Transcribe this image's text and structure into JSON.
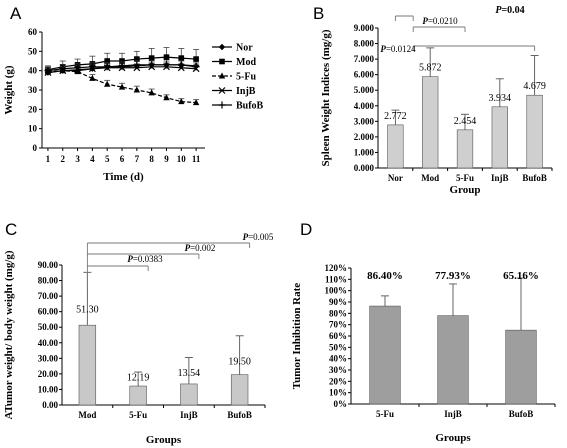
{
  "chart_data": [
    {
      "panel": "A",
      "type": "line",
      "xlabel": "Time (d)",
      "ylabel": "Weight (g)",
      "x": [
        1,
        2,
        3,
        4,
        5,
        6,
        7,
        8,
        9,
        10,
        11
      ],
      "xlim": [
        0.6,
        11.6
      ],
      "ylim": [
        0,
        60
      ],
      "yticks": [
        0,
        10,
        20,
        30,
        40,
        50,
        60
      ],
      "legend_position": "right",
      "series": [
        {
          "name": "Nor",
          "marker": "diamond",
          "dashed": false,
          "values": [
            39,
            40,
            40,
            41,
            42,
            42,
            42.5,
            43,
            43,
            43,
            42.5
          ],
          "errors": [
            2,
            2,
            2,
            2,
            2,
            3,
            3,
            3,
            3,
            3,
            3
          ]
        },
        {
          "name": "Mod",
          "marker": "square",
          "dashed": false,
          "values": [
            40.5,
            42,
            43,
            43.5,
            45,
            45,
            46,
            46.5,
            47,
            46.5,
            46
          ],
          "errors": [
            2,
            3,
            3,
            4,
            4,
            4,
            4,
            5,
            5,
            5,
            5
          ]
        },
        {
          "name": "5-Fu",
          "marker": "triangle",
          "dashed": true,
          "values": [
            39.5,
            40,
            39.5,
            36,
            33,
            31.5,
            30,
            28.5,
            26,
            24,
            23.5
          ],
          "errors": [
            2,
            2,
            2,
            2,
            2,
            2,
            2,
            2,
            1.5,
            1.5,
            1.5
          ]
        },
        {
          "name": "InjB",
          "marker": "x",
          "dashed": false,
          "values": [
            39,
            40,
            40.5,
            41,
            41.5,
            41.5,
            41.5,
            42,
            42,
            41.5,
            41
          ],
          "errors": [
            2,
            2,
            2,
            2,
            2,
            2,
            2,
            2,
            2,
            2,
            2
          ]
        },
        {
          "name": "BufoB",
          "marker": "plus",
          "dashed": false,
          "values": [
            40,
            41,
            41.5,
            42,
            42,
            42.5,
            43,
            43,
            43,
            43,
            42
          ],
          "errors": [
            2,
            2,
            2,
            2,
            2,
            2,
            2,
            2,
            2,
            2,
            2
          ]
        }
      ]
    },
    {
      "panel": "B",
      "type": "bar",
      "xlabel": "Group",
      "ylabel": "Spleen Weight Indices (mg/g)",
      "categories": [
        "Nor",
        "Mod",
        "5-Fu",
        "InjB",
        "BufoB"
      ],
      "values": [
        2.772,
        5.872,
        2.454,
        3.934,
        4.679
      ],
      "value_labels": [
        "2.772",
        "5.872",
        "2.454",
        "3.934",
        "4.679"
      ],
      "errors": [
        0.95,
        1.85,
        1.0,
        1.8,
        2.55
      ],
      "ylim": [
        0,
        9
      ],
      "yticks": [
        "0.000",
        "1.000",
        "2.000",
        "3.000",
        "4.000",
        "5.000",
        "6.000",
        "7.000",
        "8.000",
        "9.000"
      ],
      "comparisons": [
        {
          "from": "Mod",
          "to": "Nor",
          "label_p": "P",
          "label_v": "=0.0124",
          "bold": false
        },
        {
          "from": "Mod",
          "to": "5-Fu",
          "label_p": "P",
          "label_v": "=0.0210",
          "bold": false
        },
        {
          "from": "Mod",
          "to": "BufoB",
          "label_p": "P",
          "label_v": "=0.04",
          "bold": true
        }
      ]
    },
    {
      "panel": "C",
      "type": "bar",
      "xlabel": "Groups",
      "ylabel": "ATumor weight/ body weight (mg/g)",
      "categories": [
        "Mod",
        "5-Fu",
        "InjB",
        "BufoB"
      ],
      "values": [
        51.3,
        12.19,
        13.54,
        19.5
      ],
      "value_labels": [
        "51.30",
        "12.19",
        "13.54",
        "19.50"
      ],
      "errors": [
        34,
        9,
        17,
        25
      ],
      "ylim": [
        0,
        90
      ],
      "yticks": [
        "0.00",
        "10.00",
        "20.00",
        "30.00",
        "40.00",
        "50.00",
        "60.00",
        "70.00",
        "80.00",
        "90.00"
      ],
      "comparisons": [
        {
          "from": "Mod",
          "to": "5-Fu",
          "label_p": "P",
          "label_v": "=0.0383",
          "bold": false
        },
        {
          "from": "Mod",
          "to": "InjB",
          "label_p": "P",
          "label_v": "=0.002",
          "bold": false
        },
        {
          "from": "Mod",
          "to": "BufoB",
          "label_p": "P",
          "label_v": "=0.005",
          "bold": false
        }
      ]
    },
    {
      "panel": "D",
      "type": "bar",
      "xlabel": "Groups",
      "ylabel": "Tumor Inhibition Rate",
      "categories": [
        "5-Fu",
        "InjB",
        "BufoB"
      ],
      "values": [
        86.4,
        77.93,
        65.16
      ],
      "value_labels": [
        "86.40%",
        "77.93%",
        "65.16%"
      ],
      "errors": [
        9,
        28,
        46
      ],
      "ylim": [
        0,
        120
      ],
      "yticks": [
        "0%",
        "10%",
        "20%",
        "30%",
        "40%",
        "50%",
        "60%",
        "70%",
        "80%",
        "90%",
        "100%",
        "110%",
        "120%"
      ]
    }
  ]
}
